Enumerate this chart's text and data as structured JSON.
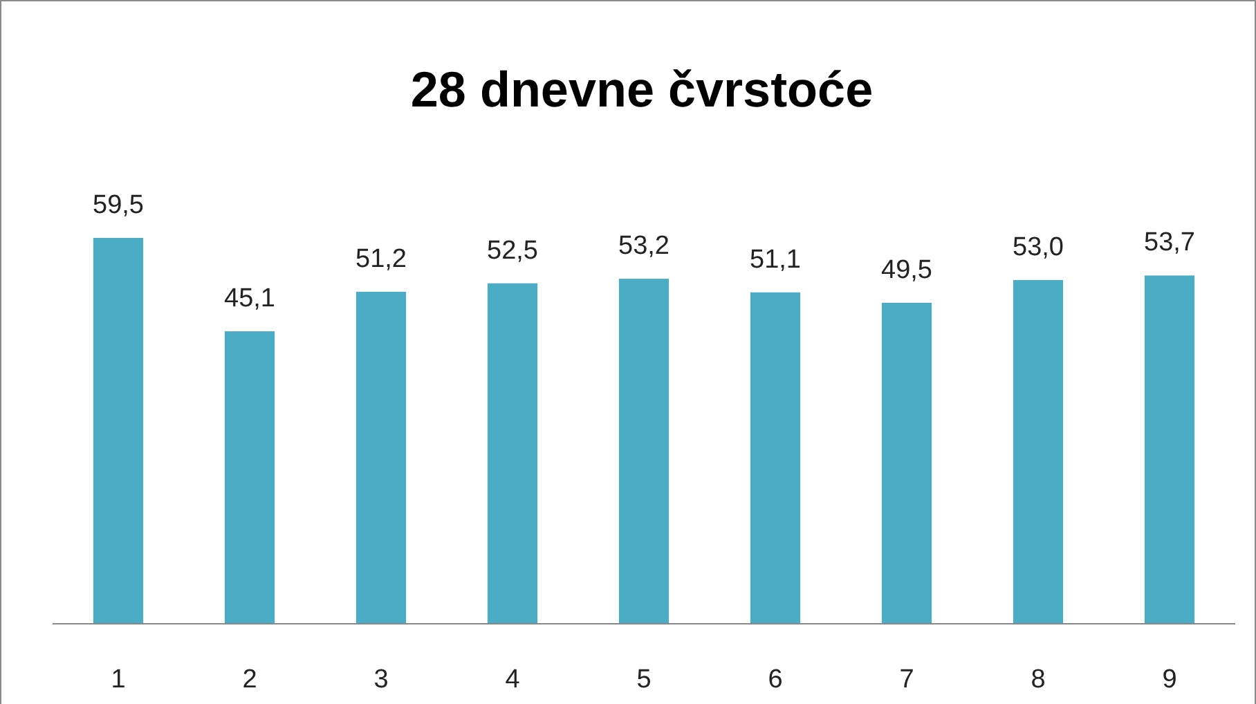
{
  "chart_data": {
    "type": "bar",
    "title": "28 dnevne čvrstoće",
    "categories": [
      "1",
      "2",
      "3",
      "4",
      "5",
      "6",
      "7",
      "8",
      "9"
    ],
    "values": [
      59.5,
      45.1,
      51.2,
      52.5,
      53.2,
      51.1,
      49.5,
      53.0,
      53.7
    ],
    "value_labels": [
      "59,5",
      "45,1",
      "51,2",
      "52,5",
      "53,2",
      "51,1",
      "49,5",
      "53,0",
      "53,7"
    ],
    "color": "#4bacc6"
  }
}
